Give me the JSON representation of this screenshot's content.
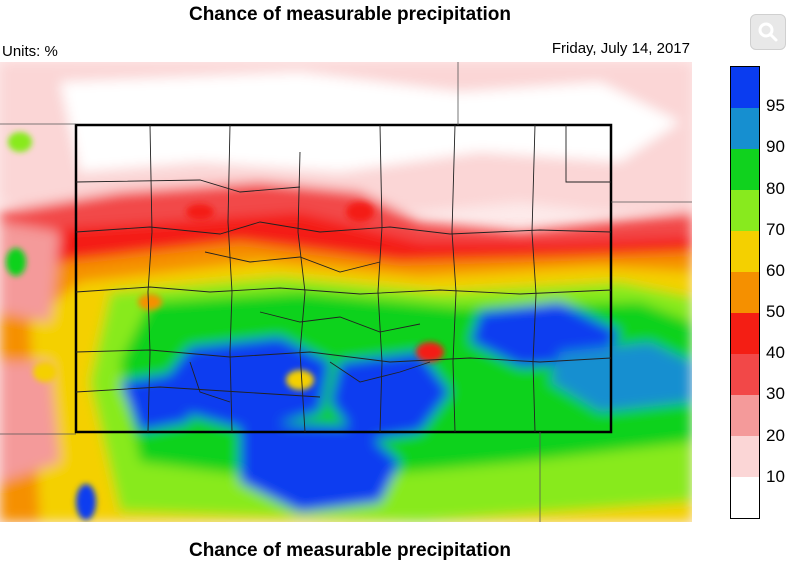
{
  "header": {
    "title": "Chance of measurable precipitation",
    "units": "Units: %",
    "date": "Friday, July 14, 2017"
  },
  "footer": {
    "caption": "Chance of measurable precipitation"
  },
  "toolbar": {
    "zoom_icon": "magnifier-icon"
  },
  "legend": {
    "levels": [
      {
        "label": "95",
        "color": "#0a3cf0"
      },
      {
        "label": "90",
        "color": "#168fd0"
      },
      {
        "label": "80",
        "color": "#10d21e"
      },
      {
        "label": "70",
        "color": "#88ea1e"
      },
      {
        "label": "60",
        "color": "#f4d000"
      },
      {
        "label": "50",
        "color": "#f59000"
      },
      {
        "label": "40",
        "color": "#f41e14"
      },
      {
        "label": "30",
        "color": "#f24848"
      },
      {
        "label": "20",
        "color": "#f49a9a"
      },
      {
        "label": "10",
        "color": "#fbd6d6"
      },
      {
        "label": "",
        "color": "#ffffff"
      }
    ]
  }
}
